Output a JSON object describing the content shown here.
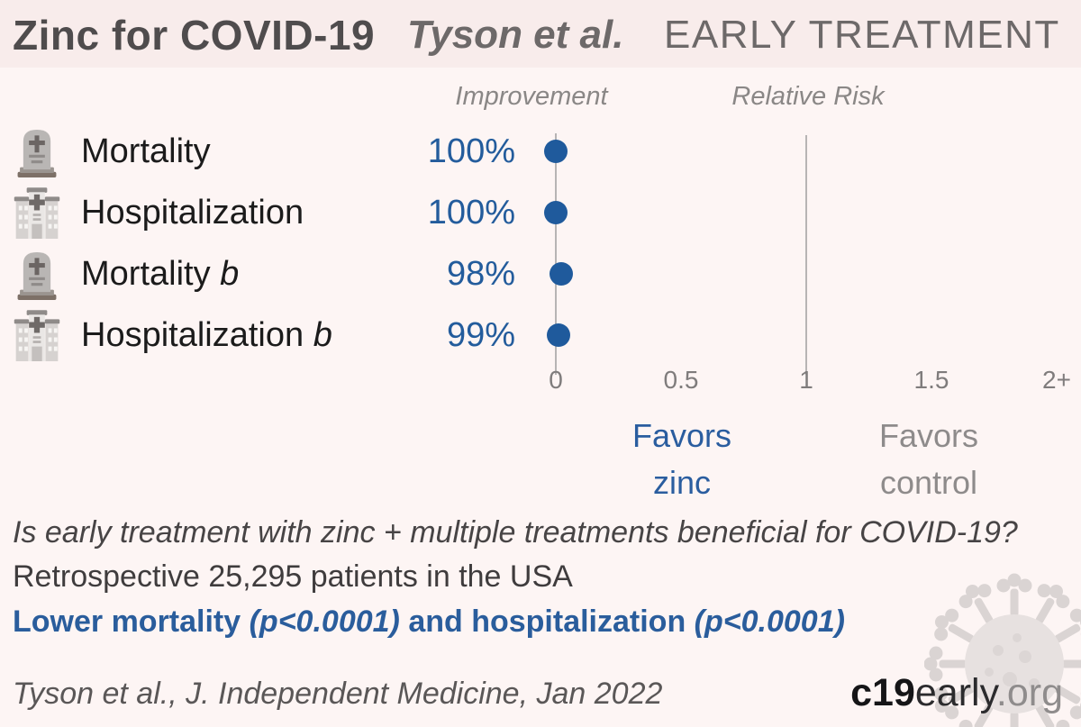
{
  "header": {
    "title": "Zinc for COVID-19",
    "authors": "Tyson et al.",
    "stage": "EARLY TREATMENT"
  },
  "column_headers": {
    "improvement": "Improvement",
    "relative_risk": "Relative Risk"
  },
  "chart_data": {
    "type": "scatter",
    "title": "Zinc for COVID-19, Tyson et al., EARLY TREATMENT",
    "xlabel": "Relative Risk",
    "x_range_displayed": [
      0,
      2
    ],
    "reference_line_value": 1,
    "zero_line_value": 0,
    "grid": false,
    "x_axis_ticks": [
      {
        "label": "0",
        "value": 0
      },
      {
        "label": "0.5",
        "value": 0.5
      },
      {
        "label": "1",
        "value": 1
      },
      {
        "label": "1.5",
        "value": 1.5
      },
      {
        "label": "2+",
        "value": 2
      }
    ],
    "rows": [
      {
        "icon": "tombstone-icon",
        "outcome": "Mortality",
        "suffix": "",
        "improvement": "100%",
        "relative_risk": 0.0
      },
      {
        "icon": "hospital-icon",
        "outcome": "Hospitalization",
        "suffix": "",
        "improvement": "100%",
        "relative_risk": 0.0
      },
      {
        "icon": "tombstone-icon",
        "outcome": "Mortality",
        "suffix": "b",
        "improvement": "98%",
        "relative_risk": 0.02
      },
      {
        "icon": "hospital-icon",
        "outcome": "Hospitalization",
        "suffix": "b",
        "improvement": "99%",
        "relative_risk": 0.01
      }
    ],
    "favors_left": {
      "line1": "Favors",
      "line2": "zinc"
    },
    "favors_right": {
      "line1": "Favors",
      "line2": "control"
    },
    "legend_position": "none"
  },
  "summary": {
    "question": "Is early treatment with zinc + multiple treatments beneficial for COVID-19?",
    "study": "Retrospective 25,295 patients in the USA",
    "result_segments": [
      {
        "text": "Lower mortality "
      },
      {
        "text": "(p<0.0001)"
      },
      {
        "text": " and hospitalization "
      },
      {
        "text": "(p<0.0001)"
      }
    ]
  },
  "footer": {
    "citation": "Tyson et al., J. Independent Medicine, Jan 2022",
    "site_bold": "c19",
    "site_regular": "early",
    "site_domain": ".org"
  },
  "colors": {
    "accent_blue": "#1f5a9c",
    "text_blue": "#235c9c",
    "header_background": "#f8eceb",
    "page_background": "#fdf5f4",
    "line_gray": "#b7b4b4",
    "muted_gray": "#8e8b8b"
  }
}
